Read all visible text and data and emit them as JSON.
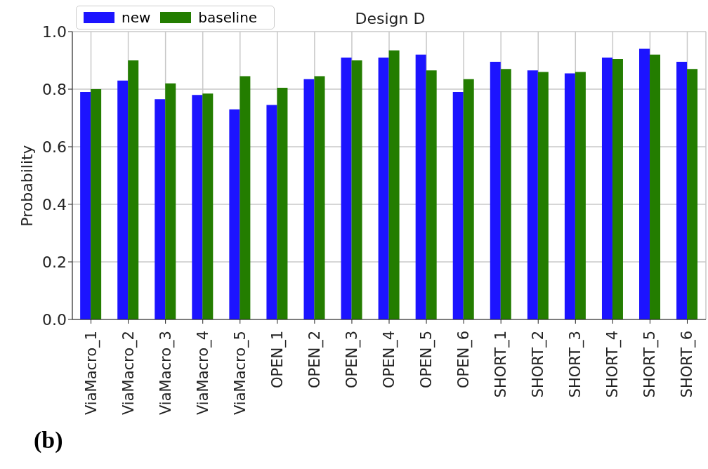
{
  "chart_data": {
    "type": "bar",
    "title": "Design D",
    "ylabel": "Probability",
    "categories": [
      "ViaMacro_1",
      "ViaMacro_2",
      "ViaMacro_3",
      "ViaMacro_4",
      "ViaMacro_5",
      "OPEN_1",
      "OPEN_2",
      "OPEN_3",
      "OPEN_4",
      "OPEN_5",
      "OPEN_6",
      "SHORT_1",
      "SHORT_2",
      "SHORT_3",
      "SHORT_4",
      "SHORT_5",
      "SHORT_6"
    ],
    "series": [
      {
        "name": "new",
        "color": "#1c14ff",
        "values": [
          0.79,
          0.83,
          0.765,
          0.78,
          0.73,
          0.745,
          0.835,
          0.91,
          0.91,
          0.92,
          0.79,
          0.895,
          0.865,
          0.855,
          0.91,
          0.94,
          0.895
        ]
      },
      {
        "name": "baseline",
        "color": "#237d00",
        "values": [
          0.8,
          0.9,
          0.82,
          0.785,
          0.845,
          0.805,
          0.845,
          0.9,
          0.935,
          0.865,
          0.835,
          0.87,
          0.86,
          0.86,
          0.905,
          0.92,
          0.87
        ]
      }
    ],
    "ylim": [
      0,
      1
    ],
    "yticks": [
      {
        "value": 0,
        "label": "0.0"
      },
      {
        "value": 0.2,
        "label": "0.2"
      },
      {
        "value": 0.4,
        "label": "0.4"
      },
      {
        "value": 0.6,
        "label": "0.6"
      },
      {
        "value": 0.8,
        "label": "0.8"
      },
      {
        "value": 1,
        "label": "1.0"
      }
    ],
    "grid": true,
    "legend": "top left",
    "annotations": [
      "(b)"
    ]
  }
}
